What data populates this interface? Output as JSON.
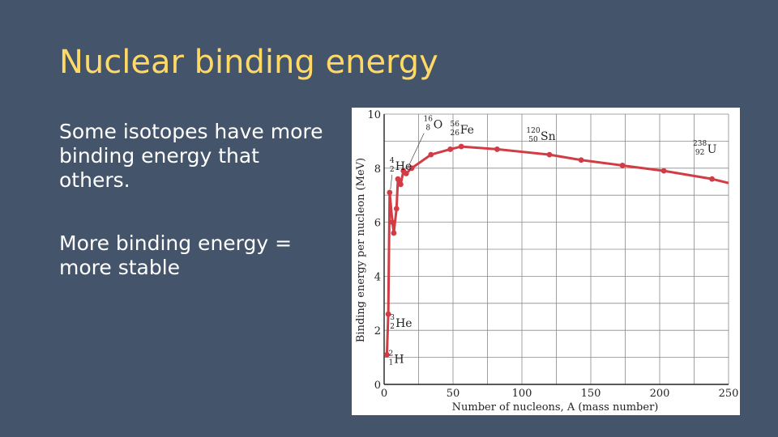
{
  "slide": {
    "title": "Nuclear binding energy",
    "bullets": [
      "Some isotopes have more binding energy that others.",
      "More binding energy = more stable"
    ]
  },
  "chart_data": {
    "type": "line",
    "xlabel": "Number of nucleons, A (mass number)",
    "ylabel": "Binding energy per nucleon (MeV)",
    "xlim": [
      0,
      250
    ],
    "ylim": [
      0,
      10
    ],
    "xticks": [
      0,
      50,
      100,
      150,
      200,
      250
    ],
    "yticks": [
      0,
      2,
      4,
      6,
      8,
      10
    ],
    "grid": true,
    "line_color": "#d13c45",
    "points": [
      {
        "x": 2,
        "y": 1.1
      },
      {
        "x": 3,
        "y": 2.6
      },
      {
        "x": 4,
        "y": 7.1
      },
      {
        "x": 6,
        "y": 6.0
      },
      {
        "x": 7,
        "y": 5.6
      },
      {
        "x": 9,
        "y": 6.5
      },
      {
        "x": 10,
        "y": 7.6
      },
      {
        "x": 12,
        "y": 7.4
      },
      {
        "x": 14,
        "y": 7.9
      },
      {
        "x": 16,
        "y": 7.8
      },
      {
        "x": 20,
        "y": 8.0
      },
      {
        "x": 34,
        "y": 8.5
      },
      {
        "x": 48,
        "y": 8.7
      },
      {
        "x": 56,
        "y": 8.8
      },
      {
        "x": 82,
        "y": 8.7
      },
      {
        "x": 120,
        "y": 8.5
      },
      {
        "x": 143,
        "y": 8.3
      },
      {
        "x": 173,
        "y": 8.1
      },
      {
        "x": 203,
        "y": 7.9
      },
      {
        "x": 238,
        "y": 7.6
      }
    ],
    "curve_end": {
      "x": 250,
      "y": 7.45
    },
    "annotations": [
      {
        "symbol": "H",
        "mass": "2",
        "atomic": "1",
        "x": 2,
        "y": 1.1
      },
      {
        "symbol": "He",
        "mass": "3",
        "atomic": "2",
        "x": 3,
        "y": 2.6
      },
      {
        "symbol": "He",
        "mass": "4",
        "atomic": "2",
        "x": 4,
        "y": 7.1
      },
      {
        "symbol": "O",
        "mass": "16",
        "atomic": "8",
        "x": 16,
        "y": 7.8
      },
      {
        "symbol": "Fe",
        "mass": "56",
        "atomic": "26",
        "x": 56,
        "y": 8.8
      },
      {
        "symbol": "Sn",
        "mass": "120",
        "atomic": "50",
        "x": 120,
        "y": 8.5
      },
      {
        "symbol": "U",
        "mass": "238",
        "atomic": "92",
        "x": 238,
        "y": 7.6
      }
    ]
  }
}
